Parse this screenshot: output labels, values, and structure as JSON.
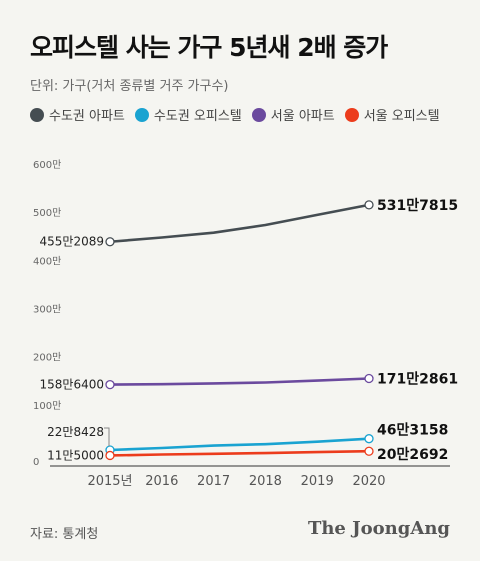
{
  "header": {
    "title": "오피스텔 사는 가구 5년새 2배 증가",
    "unit": "단위: 가구(거처 종류별 거주 가구수)"
  },
  "footer": {
    "source": "자료: 통계청",
    "brand": "The JoongAng"
  },
  "chart_data": {
    "type": "line",
    "x": [
      "2015년",
      "2016",
      "2017",
      "2018",
      "2019",
      "2020"
    ],
    "y_ticks": [
      "0",
      "100만",
      "200만",
      "300만",
      "400만",
      "500만",
      "600만"
    ],
    "ylim": [
      0,
      6000000
    ],
    "grid": false,
    "legend_position": "top",
    "series": [
      {
        "name": "수도권 아파트",
        "color": "#454d52",
        "values": [
          4552089,
          4640000,
          4740000,
          4900000,
          5110000,
          5317815
        ],
        "start_label": "455만2089",
        "end_label": "531만7815"
      },
      {
        "name": "수도권 오피스텔",
        "color": "#1aa3d1",
        "values": [
          228428,
          270000,
          320000,
          350000,
          400000,
          463158
        ],
        "start_label": "22만8428",
        "end_label": "46만3158"
      },
      {
        "name": "서울 아파트",
        "color": "#6b4a9e",
        "values": [
          1586400,
          1595000,
          1610000,
          1630000,
          1670000,
          1712861
        ],
        "start_label": "158만6400",
        "end_label": "171만2861"
      },
      {
        "name": "서울 오피스텔",
        "color": "#ec3c1c",
        "values": [
          115000,
          135000,
          150000,
          165000,
          185000,
          202692
        ],
        "start_label": "11만5000",
        "end_label": "20만2692"
      }
    ]
  }
}
